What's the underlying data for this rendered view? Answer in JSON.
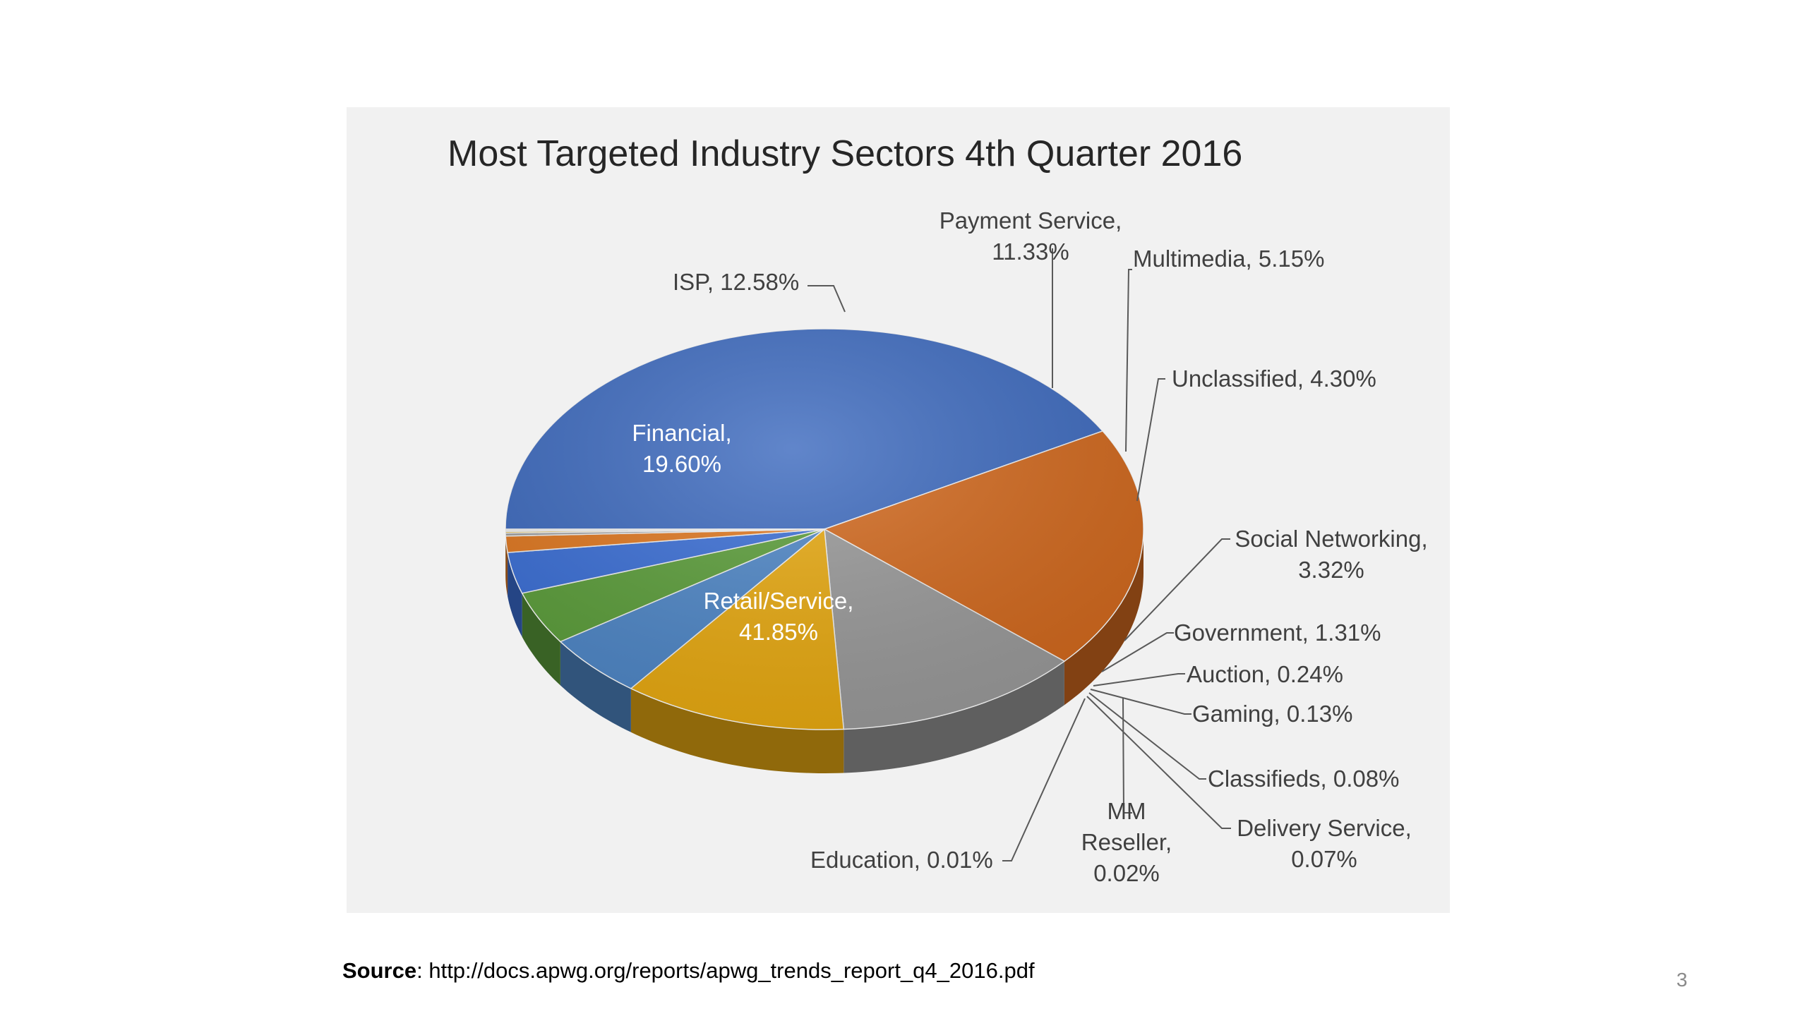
{
  "chart_data": {
    "type": "pie",
    "title": "Most Targeted Industry Sectors 4th Quarter 2016",
    "slices": [
      {
        "label": "Retail/Service",
        "value": 41.85,
        "text": "41.85%",
        "color": "#3e6bbf"
      },
      {
        "label": "Financial",
        "value": 19.6,
        "text": "19.60%",
        "color": "#d2691e"
      },
      {
        "label": "ISP",
        "value": 12.58,
        "text": "12.58%",
        "color": "#9a9a9a"
      },
      {
        "label": "Payment Service",
        "value": 11.33,
        "text": "11.33%",
        "color": "#e8aa12"
      },
      {
        "label": "Multimedia",
        "value": 5.15,
        "text": "5.15%",
        "color": "#4f87c7"
      },
      {
        "label": "Unclassified",
        "value": 4.3,
        "text": "4.30%",
        "color": "#5c9e3b"
      },
      {
        "label": "Social Networking",
        "value": 3.32,
        "text": "3.32%",
        "color": "#3b6fd6"
      },
      {
        "label": "Government",
        "value": 1.31,
        "text": "1.31%",
        "color": "#e07820"
      },
      {
        "label": "Auction",
        "value": 0.24,
        "text": "0.24%",
        "color": "#a0a0a0"
      },
      {
        "label": "Gaming",
        "value": 0.13,
        "text": "0.13%",
        "color": "#e0b020"
      },
      {
        "label": "Classifieds",
        "value": 0.08,
        "text": "0.08%",
        "color": "#2c4f8e"
      },
      {
        "label": "Delivery Service",
        "value": 0.07,
        "text": "0.07%",
        "color": "#3f7f2a"
      },
      {
        "label": "MM Reseller",
        "value": 0.02,
        "text": "0.02%",
        "color": "#27467f"
      },
      {
        "label": "Education",
        "value": 0.01,
        "text": "0.01%",
        "color": "#8a4a10"
      }
    ]
  },
  "labels": {
    "retail_line1": "Retail/Service,",
    "retail_line2": "41.85%",
    "financial_line1": "Financial,",
    "financial_line2": "19.60%",
    "isp": "ISP, 12.58%",
    "payment_line1": "Payment Service,",
    "payment_line2": "11.33%",
    "multimedia": "Multimedia, 5.15%",
    "unclassified": "Unclassified, 4.30%",
    "social_line1": "Social Networking,",
    "social_line2": "3.32%",
    "government": "Government, 1.31%",
    "auction": "Auction, 0.24%",
    "gaming": "Gaming, 0.13%",
    "classifieds": "Classifieds, 0.08%",
    "delivery_line1": "Delivery Service,",
    "delivery_line2": "0.07%",
    "mm_line1": "MM",
    "mm_line2": "Reseller,",
    "mm_line3": "0.02%",
    "education": "Education, 0.01%"
  },
  "source": {
    "prefix": "Source",
    "url": ": http://docs.apwg.org/reports/apwg_trends_report_q4_2016.pdf"
  },
  "page_number": "3"
}
